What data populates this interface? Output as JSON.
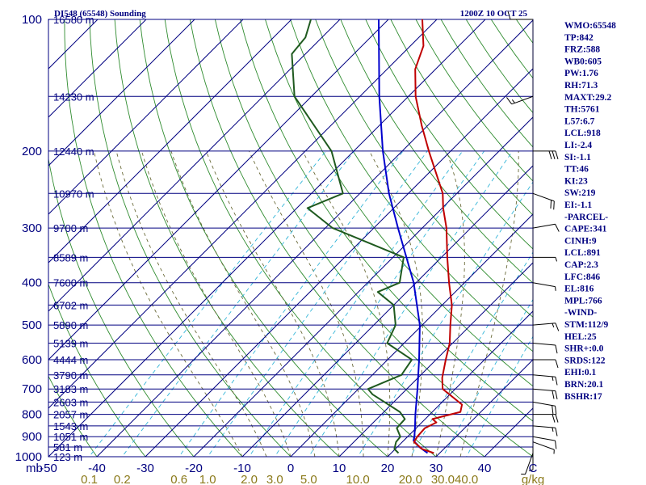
{
  "chart_data": {
    "type": "line",
    "title_left": "DI548 (65548) Sounding",
    "title_right": "1200Z 10 OCT 25",
    "pressure_ticks": [
      100,
      200,
      300,
      400,
      500,
      600,
      700,
      800,
      900,
      1000
    ],
    "height_labels": [
      {
        "p": 100,
        "text": "16580 m"
      },
      {
        "p": 150,
        "text": "14230 m"
      },
      {
        "p": 200,
        "text": "12440 m"
      },
      {
        "p": 250,
        "text": "10970 m"
      },
      {
        "p": 300,
        "text": "9700 m"
      },
      {
        "p": 350,
        "text": "8589 m"
      },
      {
        "p": 400,
        "text": "7600 m"
      },
      {
        "p": 450,
        "text": "6702 m"
      },
      {
        "p": 500,
        "text": "5890 m"
      },
      {
        "p": 550,
        "text": "5139 m"
      },
      {
        "p": 600,
        "text": "4444 m"
      },
      {
        "p": 650,
        "text": "3790 m"
      },
      {
        "p": 700,
        "text": "3183 m"
      },
      {
        "p": 750,
        "text": "2603 m"
      },
      {
        "p": 800,
        "text": "2057 m"
      },
      {
        "p": 850,
        "text": "1543 m"
      },
      {
        "p": 900,
        "text": "1051 m"
      },
      {
        "p": 950,
        "text": "581 m"
      },
      {
        "p": 1000,
        "text": "123 m"
      }
    ],
    "temp_axis_label": "mb",
    "temp_ticks": [
      "-50",
      "-40",
      "-30",
      "-20",
      "-10",
      "0",
      "10",
      "20",
      "30",
      "40",
      "C"
    ],
    "mixing_ratio_ticks": [
      "0.1",
      "0.2",
      "0.6",
      "1.0",
      "2.0",
      "3.0",
      "5.0",
      "10.0",
      "20.0",
      "30.0",
      "40.0",
      "g/kg"
    ],
    "temperature_profile": [
      {
        "p": 981,
        "t": 28.8
      },
      {
        "p": 960,
        "t": 25.5
      },
      {
        "p": 925,
        "t": 22.4
      },
      {
        "p": 900,
        "t": 22.0
      },
      {
        "p": 860,
        "t": 21.8
      },
      {
        "p": 835,
        "t": 23.0
      },
      {
        "p": 820,
        "t": 21.5
      },
      {
        "p": 790,
        "t": 25.8
      },
      {
        "p": 760,
        "t": 24.6
      },
      {
        "p": 700,
        "t": 17.4
      },
      {
        "p": 660,
        "t": 15.0
      },
      {
        "p": 600,
        "t": 12.0
      },
      {
        "p": 550,
        "t": 9.4
      },
      {
        "p": 500,
        "t": 5.8
      },
      {
        "p": 450,
        "t": 2.0
      },
      {
        "p": 400,
        "t": -3.2
      },
      {
        "p": 350,
        "t": -8.8
      },
      {
        "p": 300,
        "t": -15.0
      },
      {
        "p": 270,
        "t": -19.8
      },
      {
        "p": 250,
        "t": -22.9
      },
      {
        "p": 200,
        "t": -34.5
      },
      {
        "p": 175,
        "t": -41.2
      },
      {
        "p": 150,
        "t": -48.5
      },
      {
        "p": 130,
        "t": -54.2
      },
      {
        "p": 115,
        "t": -57.3
      },
      {
        "p": 100,
        "t": -63.0
      }
    ],
    "dewpoint_profile": [
      {
        "p": 981,
        "t": 21.5
      },
      {
        "p": 960,
        "t": 19.8
      },
      {
        "p": 925,
        "t": 18.7
      },
      {
        "p": 900,
        "t": 18.5
      },
      {
        "p": 860,
        "t": 16.0
      },
      {
        "p": 820,
        "t": 15.8
      },
      {
        "p": 790,
        "t": 13.3
      },
      {
        "p": 720,
        "t": 4.0
      },
      {
        "p": 700,
        "t": 2.0
      },
      {
        "p": 650,
        "t": 6.0
      },
      {
        "p": 600,
        "t": 5.0
      },
      {
        "p": 550,
        "t": -3.5
      },
      {
        "p": 500,
        "t": -5.5
      },
      {
        "p": 450,
        "t": -10.0
      },
      {
        "p": 420,
        "t": -16.0
      },
      {
        "p": 400,
        "t": -13.4
      },
      {
        "p": 350,
        "t": -17.8
      },
      {
        "p": 300,
        "t": -38.5
      },
      {
        "p": 270,
        "t": -47.8
      },
      {
        "p": 250,
        "t": -43.5
      },
      {
        "p": 200,
        "t": -54.6
      },
      {
        "p": 150,
        "t": -73.5
      },
      {
        "p": 120,
        "t": -82.8
      },
      {
        "p": 110,
        "t": -83.4
      },
      {
        "p": 100,
        "t": -86.0
      }
    ],
    "parcel_profile": [
      {
        "p": 981,
        "t": 27.5
      },
      {
        "p": 950,
        "t": 24.5
      },
      {
        "p": 918,
        "t": 22.0
      },
      {
        "p": 900,
        "t": 21.4
      },
      {
        "p": 850,
        "t": 19.3
      },
      {
        "p": 800,
        "t": 17.0
      },
      {
        "p": 700,
        "t": 12.2
      },
      {
        "p": 600,
        "t": 6.5
      },
      {
        "p": 500,
        "t": -0.5
      },
      {
        "p": 400,
        "t": -10.5
      },
      {
        "p": 300,
        "t": -25.0
      },
      {
        "p": 250,
        "t": -34.0
      },
      {
        "p": 200,
        "t": -44.0
      },
      {
        "p": 150,
        "t": -56.0
      },
      {
        "p": 100,
        "t": -72.0
      }
    ],
    "wind_barbs": [
      {
        "p": 100,
        "dir": 270,
        "spd": 10
      },
      {
        "p": 150,
        "dir": 250,
        "spd": 15
      },
      {
        "p": 200,
        "dir": 90,
        "spd": 30
      },
      {
        "p": 250,
        "dir": 110,
        "spd": 20
      },
      {
        "p": 300,
        "dir": 80,
        "spd": 10
      },
      {
        "p": 350,
        "dir": 90,
        "spd": 5
      },
      {
        "p": 400,
        "dir": 100,
        "spd": 5
      },
      {
        "p": 500,
        "dir": 85,
        "spd": 15
      },
      {
        "p": 550,
        "dir": 95,
        "spd": 10
      },
      {
        "p": 600,
        "dir": 90,
        "spd": 10
      },
      {
        "p": 650,
        "dir": 95,
        "spd": 15
      },
      {
        "p": 700,
        "dir": 95,
        "spd": 20
      },
      {
        "p": 750,
        "dir": 100,
        "spd": 20
      },
      {
        "p": 800,
        "dir": 90,
        "spd": 20
      },
      {
        "p": 850,
        "dir": 95,
        "spd": 15
      },
      {
        "p": 900,
        "dir": 100,
        "spd": 10
      },
      {
        "p": 925,
        "dir": 110,
        "spd": 5
      },
      {
        "p": 950,
        "dir": 180,
        "spd": 5
      },
      {
        "p": 981,
        "dir": 200,
        "spd": 5
      }
    ],
    "indices": [
      "WMO:65548",
      "TP:842",
      "FRZ:588",
      "WB0:605",
      "PW:1.76",
      "RH:71.3",
      "MAXT:29.2",
      "TH:5761",
      "L57:6.7",
      "LCL:918",
      "LI:-2.4",
      "SI:-1.1",
      "TT:46",
      "KI:23",
      "SW:219",
      "EI:-1.1",
      "-PARCEL-",
      "CAPE:341",
      "CINH:9",
      "LCL:891",
      "CAP:2.3",
      "LFC:846",
      "EL:816",
      "MPL:766",
      "-WIND-",
      "STM:112/9",
      "HEL:25",
      "SHR+:0.0",
      "SRDS:122",
      "EHI:0.1",
      "BRN:20.1",
      "BSHR:17"
    ],
    "colors": {
      "frame": "#000080",
      "isobar": "#000080",
      "isotherm": "#000080",
      "dry_adiabat": "#2e8b2e",
      "moist_adiabat": "#6b6b3a",
      "mixing_ratio": "#33b5d8",
      "temperature": "#c00000",
      "dewpoint": "#1f5a1f",
      "parcel": "#0000cd",
      "barb": "#000000",
      "mixing_label": "#8b7a1a"
    }
  }
}
